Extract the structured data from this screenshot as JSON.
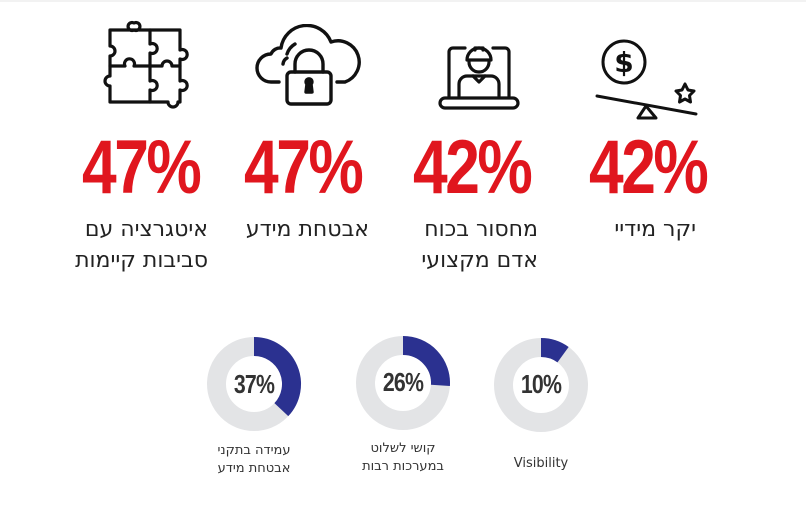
{
  "colors": {
    "accent_red": "#e0161e",
    "donut_fill": "#2b3190",
    "donut_track": "#e3e4e6",
    "text": "#222222"
  },
  "stats": [
    {
      "icon": "puzzle-icon",
      "value": "47%",
      "label_lines": [
        "איטגרציה עם",
        "סביבות קיימות"
      ]
    },
    {
      "icon": "cloud-lock-icon",
      "value": "47%",
      "label_lines": [
        "אבטחת מידע"
      ]
    },
    {
      "icon": "laptop-worker-icon",
      "value": "42%",
      "label_lines": [
        "מחסור בכוח",
        "אדם מקצועי"
      ]
    },
    {
      "icon": "dollar-seesaw-icon",
      "value": "42%",
      "label_lines": [
        "יקר מידיי"
      ]
    }
  ],
  "donuts": [
    {
      "value": "37%",
      "percent": 37,
      "label_lines": [
        "עמידה בתקני",
        "אבטחת מידע"
      ]
    },
    {
      "value": "26%",
      "percent": 26,
      "label_lines": [
        "קושי לשלוט",
        "במערכות רבות"
      ]
    },
    {
      "value": "10%",
      "percent": 10,
      "label_lines": [
        "Visibility"
      ]
    }
  ]
}
